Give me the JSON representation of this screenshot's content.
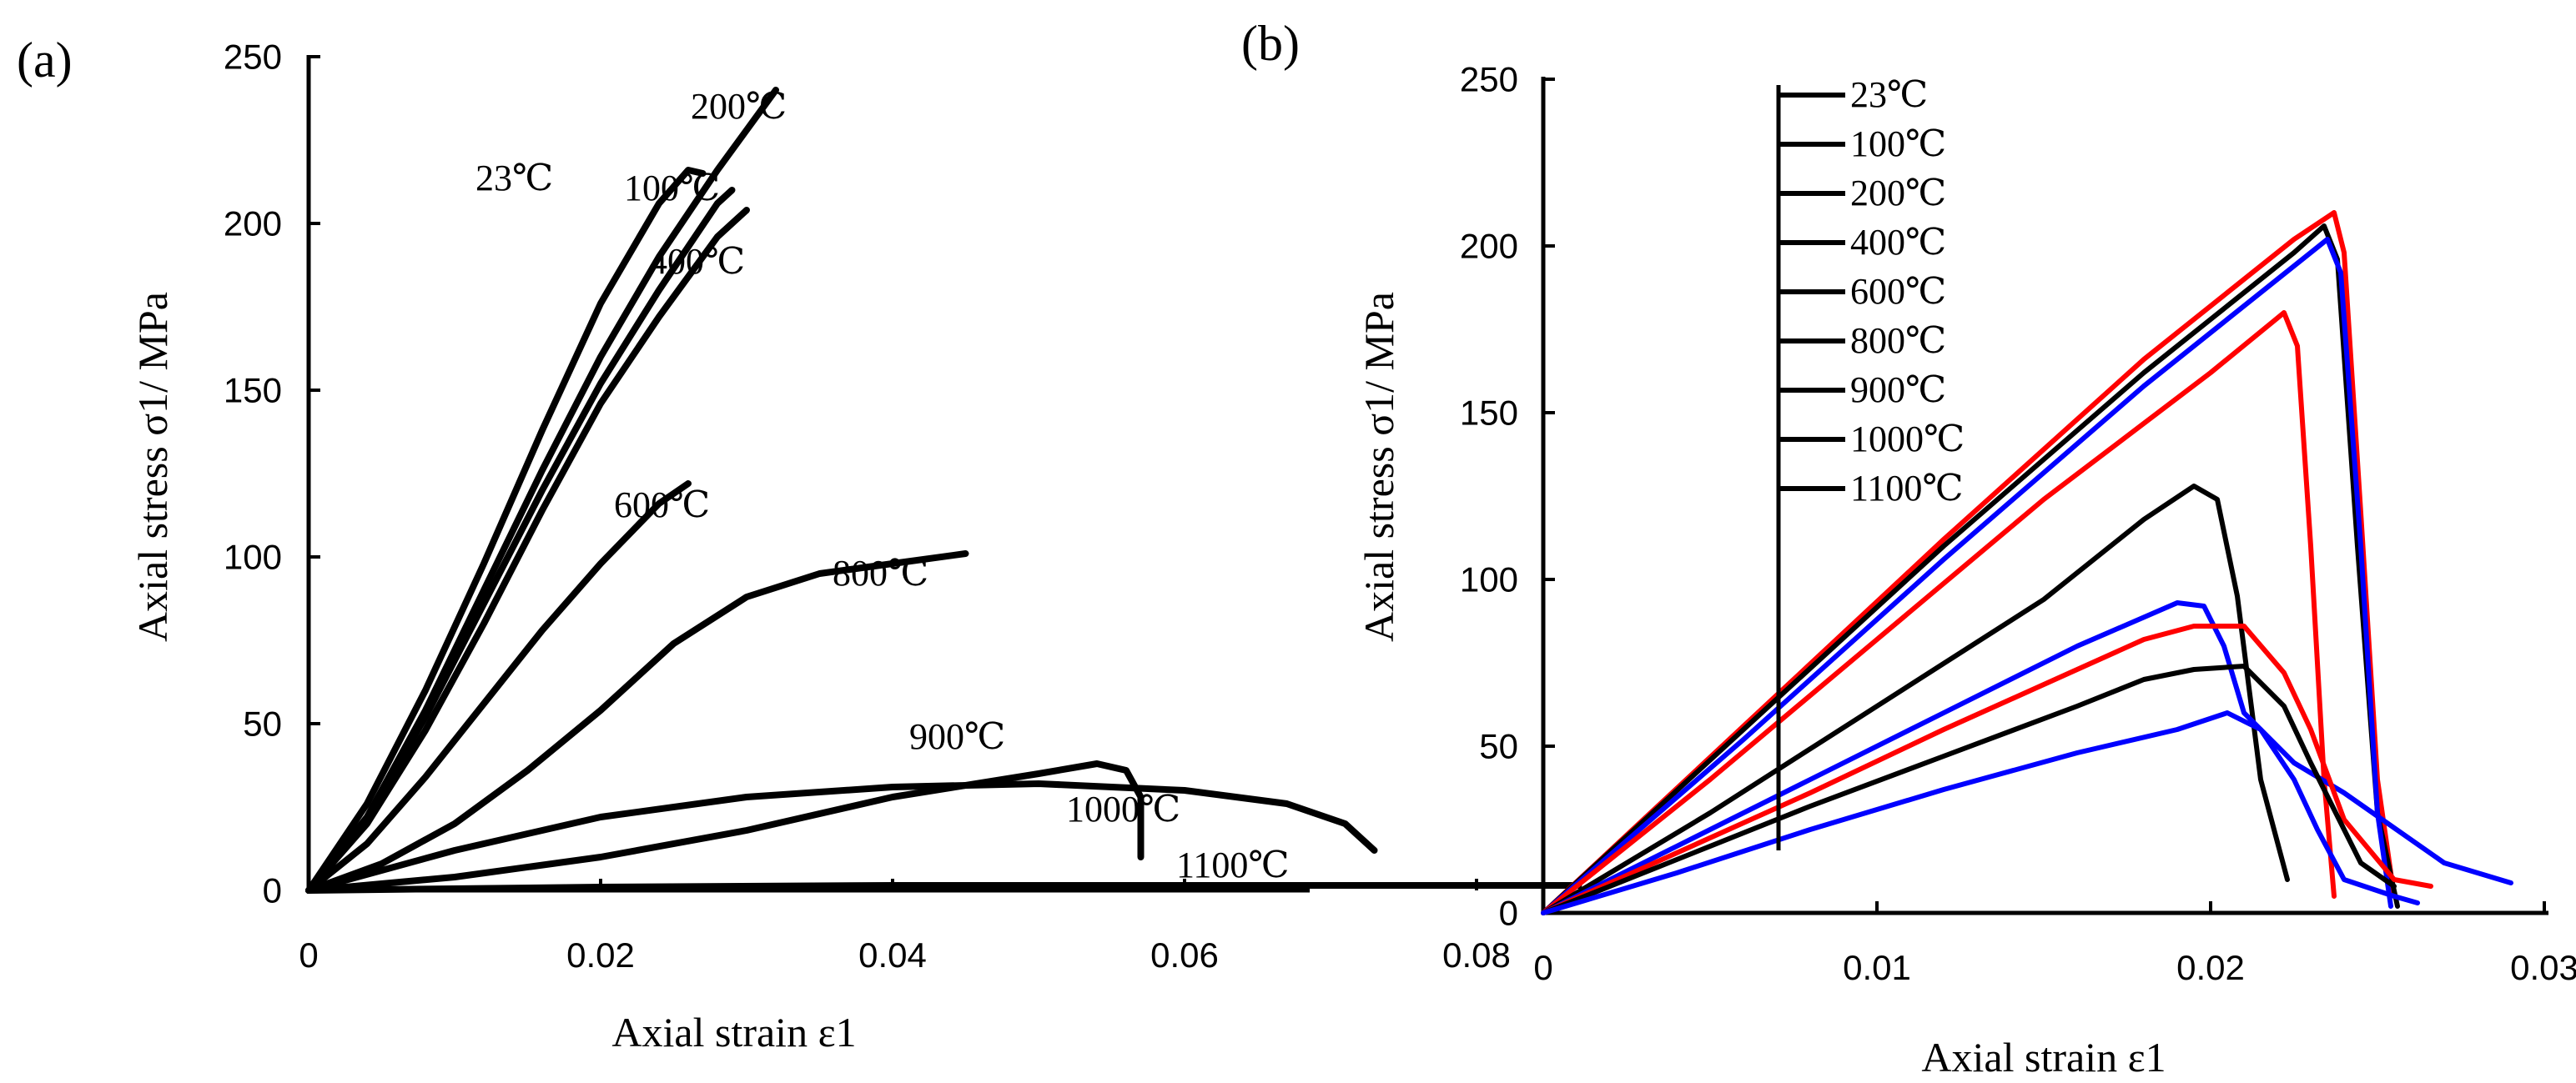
{
  "chart_data": [
    {
      "type": "line",
      "panel_label": "(a)",
      "xlabel": "Axial strain ε1",
      "ylabel": "Axial stress σ1/ MPa",
      "xlim": [
        0,
        0.09
      ],
      "ylim": [
        0,
        250
      ],
      "xticks": [
        "0",
        "0.02",
        "0.04",
        "0.06",
        "0.08"
      ],
      "yticks": [
        "0",
        "50",
        "100",
        "150",
        "200",
        "250"
      ],
      "color": "#000000",
      "series": [
        {
          "name": "23℃",
          "label": "23℃",
          "x": [
            0,
            0.004,
            0.008,
            0.012,
            0.016,
            0.02,
            0.024,
            0.026,
            0.027
          ],
          "y": [
            0,
            26,
            60,
            98,
            138,
            176,
            206,
            216,
            215
          ]
        },
        {
          "name": "100℃",
          "label": "100℃",
          "x": [
            0,
            0.004,
            0.008,
            0.012,
            0.016,
            0.02,
            0.024,
            0.028,
            0.029
          ],
          "y": [
            0,
            22,
            52,
            86,
            120,
            152,
            180,
            206,
            210
          ]
        },
        {
          "name": "200℃",
          "label": "200℃",
          "x": [
            0,
            0.004,
            0.008,
            0.012,
            0.016,
            0.02,
            0.024,
            0.028,
            0.032
          ],
          "y": [
            0,
            22,
            54,
            90,
            126,
            160,
            190,
            216,
            240
          ]
        },
        {
          "name": "400℃",
          "label": "400℃",
          "x": [
            0,
            0.004,
            0.008,
            0.012,
            0.016,
            0.02,
            0.024,
            0.028,
            0.03
          ],
          "y": [
            0,
            20,
            48,
            80,
            114,
            146,
            172,
            196,
            204
          ]
        },
        {
          "name": "600℃",
          "label": "600℃",
          "x": [
            0,
            0.004,
            0.008,
            0.012,
            0.016,
            0.02,
            0.024,
            0.026
          ],
          "y": [
            0,
            14,
            34,
            56,
            78,
            98,
            116,
            122
          ]
        },
        {
          "name": "800℃",
          "label": "800℃",
          "x": [
            0,
            0.005,
            0.01,
            0.015,
            0.02,
            0.025,
            0.03,
            0.035,
            0.04,
            0.045
          ],
          "y": [
            0,
            8,
            20,
            36,
            54,
            74,
            88,
            95,
            98,
            101
          ]
        },
        {
          "name": "900℃",
          "label": "900℃",
          "x": [
            0,
            0.01,
            0.02,
            0.03,
            0.04,
            0.05,
            0.054,
            0.056,
            0.057,
            0.057
          ],
          "y": [
            0,
            4,
            10,
            18,
            28,
            35,
            38,
            36,
            28,
            10
          ]
        },
        {
          "name": "1000℃",
          "label": "1000℃",
          "x": [
            0,
            0.01,
            0.02,
            0.03,
            0.04,
            0.05,
            0.06,
            0.067,
            0.071,
            0.073
          ],
          "y": [
            0,
            12,
            22,
            28,
            31,
            32,
            30,
            26,
            20,
            12
          ]
        },
        {
          "name": "1100℃",
          "label": "1100℃",
          "x": [
            0,
            0.02,
            0.04,
            0.06,
            0.087
          ],
          "y": [
            0,
            1,
            1.5,
            1.5,
            1.5
          ]
        }
      ]
    },
    {
      "type": "line",
      "panel_label": "(b)",
      "xlabel": "Axial strain ε1",
      "ylabel": "Axial stress σ1/ MPa",
      "xlim": [
        0,
        0.03
      ],
      "ylim": [
        0,
        250
      ],
      "xticks": [
        "0",
        "0.01",
        "0.02",
        "0.03"
      ],
      "yticks": [
        "0",
        "50",
        "100",
        "150",
        "200",
        "250"
      ],
      "legend": [
        "23℃",
        "100℃",
        "200℃",
        "400℃",
        "600℃",
        "800℃",
        "900℃",
        "1000℃",
        "1100℃"
      ],
      "series": [
        {
          "name": "s1",
          "color": "#ff0000",
          "x": [
            0,
            0.006,
            0.012,
            0.018,
            0.0225,
            0.0237,
            0.024,
            0.0245,
            0.025,
            0.0255
          ],
          "y": [
            0,
            56,
            112,
            166,
            202,
            210,
            198,
            120,
            40,
            5
          ]
        },
        {
          "name": "s2",
          "color": "#000000",
          "x": [
            0,
            0.006,
            0.012,
            0.018,
            0.0225,
            0.0234,
            0.0238,
            0.0244,
            0.025,
            0.0256
          ],
          "y": [
            0,
            55,
            110,
            162,
            198,
            206,
            196,
            110,
            30,
            2
          ]
        },
        {
          "name": "s3",
          "color": "#0000ff",
          "x": [
            0,
            0.006,
            0.012,
            0.018,
            0.0225,
            0.0235,
            0.0239,
            0.0245,
            0.025,
            0.0254
          ],
          "y": [
            0,
            52,
            106,
            158,
            194,
            202,
            192,
            110,
            30,
            2
          ]
        },
        {
          "name": "s4",
          "color": "#ff0000",
          "x": [
            0,
            0.005,
            0.01,
            0.015,
            0.02,
            0.0222,
            0.0226,
            0.023,
            0.0234,
            0.0237
          ],
          "y": [
            0,
            40,
            82,
            124,
            162,
            180,
            170,
            110,
            40,
            5
          ]
        },
        {
          "name": "s5",
          "color": "#000000",
          "x": [
            0,
            0.005,
            0.01,
            0.015,
            0.018,
            0.0195,
            0.0202,
            0.0208,
            0.0215,
            0.0223
          ],
          "y": [
            0,
            30,
            62,
            94,
            118,
            128,
            124,
            95,
            40,
            10
          ]
        },
        {
          "name": "s6",
          "color": "#0000ff",
          "x": [
            0,
            0.004,
            0.008,
            0.012,
            0.016,
            0.019,
            0.0198,
            0.0204,
            0.021,
            0.0225,
            0.024,
            0.027,
            0.029
          ],
          "y": [
            0,
            20,
            40,
            60,
            80,
            93,
            92,
            80,
            60,
            45,
            36,
            15,
            9
          ]
        },
        {
          "name": "s7",
          "color": "#ff0000",
          "x": [
            0,
            0.004,
            0.008,
            0.012,
            0.016,
            0.018,
            0.0195,
            0.021,
            0.0222,
            0.023,
            0.024,
            0.0255,
            0.0266
          ],
          "y": [
            0,
            18,
            36,
            55,
            73,
            82,
            86,
            86,
            72,
            55,
            28,
            10,
            8
          ]
        },
        {
          "name": "s8",
          "color": "#000000",
          "x": [
            0,
            0.004,
            0.008,
            0.012,
            0.016,
            0.018,
            0.0195,
            0.021,
            0.0222,
            0.023,
            0.0245,
            0.0255
          ],
          "y": [
            0,
            16,
            32,
            47,
            62,
            70,
            73,
            74,
            62,
            45,
            15,
            8
          ]
        },
        {
          "name": "s9",
          "color": "#0000ff",
          "x": [
            0,
            0.004,
            0.008,
            0.012,
            0.016,
            0.019,
            0.0205,
            0.0215,
            0.0225,
            0.0232,
            0.024,
            0.0255,
            0.0262
          ],
          "y": [
            0,
            12,
            25,
            37,
            48,
            55,
            60,
            55,
            40,
            25,
            10,
            5,
            3
          ]
        }
      ]
    }
  ]
}
